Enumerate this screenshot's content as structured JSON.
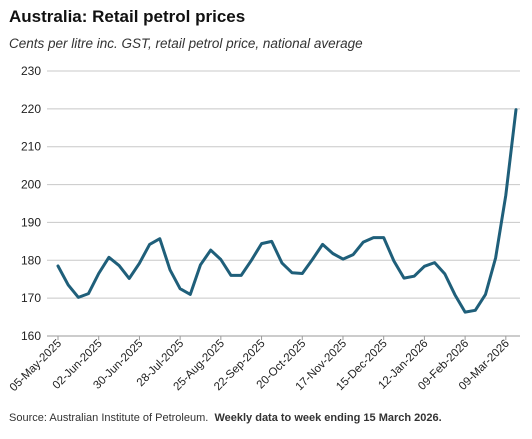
{
  "chart_data": {
    "type": "line",
    "title": "Australia: Retail petrol prices",
    "subtitle": "Cents per litre inc. GST, retail petrol price, national average",
    "xlabel": "",
    "ylabel": "",
    "ylim": [
      160,
      230
    ],
    "yticks": [
      160,
      170,
      180,
      190,
      200,
      210,
      220,
      230
    ],
    "grid": true,
    "legend": "none",
    "line_color": "#1f5f7a",
    "x_tick_labels": [
      "05-May-2025",
      "02-Jun-2025",
      "30-Jun-2025",
      "28-Jul-2025",
      "25-Aug-2025",
      "22-Sep-2025",
      "20-Oct-2025",
      "17-Nov-2025",
      "15-Dec-2025",
      "12-Jan-2026",
      "09-Feb-2026",
      "09-Mar-2026"
    ],
    "x": [
      "05-May-2025",
      "12-May-2025",
      "19-May-2025",
      "26-May-2025",
      "02-Jun-2025",
      "09-Jun-2025",
      "16-Jun-2025",
      "23-Jun-2025",
      "30-Jun-2025",
      "07-Jul-2025",
      "14-Jul-2025",
      "21-Jul-2025",
      "28-Jul-2025",
      "04-Aug-2025",
      "11-Aug-2025",
      "18-Aug-2025",
      "25-Aug-2025",
      "01-Sep-2025",
      "08-Sep-2025",
      "15-Sep-2025",
      "22-Sep-2025",
      "29-Sep-2025",
      "06-Oct-2025",
      "13-Oct-2025",
      "20-Oct-2025",
      "27-Oct-2025",
      "03-Nov-2025",
      "10-Nov-2025",
      "17-Nov-2025",
      "24-Nov-2025",
      "01-Dec-2025",
      "08-Dec-2025",
      "15-Dec-2025",
      "22-Dec-2025",
      "29-Dec-2025",
      "05-Jan-2026",
      "12-Jan-2026",
      "19-Jan-2026",
      "26-Jan-2026",
      "02-Feb-2026",
      "09-Feb-2026",
      "16-Feb-2026",
      "23-Feb-2026",
      "02-Mar-2026",
      "09-Mar-2026",
      "16-Mar-2026"
    ],
    "values": [
      178.5,
      173.5,
      170.2,
      171.2,
      176.5,
      180.8,
      178.6,
      175.2,
      179.2,
      184.2,
      185.7,
      177.5,
      172.5,
      171.0,
      178.8,
      182.7,
      180.2,
      176.0,
      176.0,
      180.0,
      184.4,
      185.0,
      179.3,
      176.7,
      176.5,
      180.2,
      184.2,
      181.8,
      180.3,
      181.5,
      184.8,
      186.0,
      186.0,
      179.8,
      175.3,
      175.8,
      178.4,
      179.4,
      176.4,
      170.9,
      166.3,
      166.8,
      171.0,
      180.6,
      197.2,
      219.8
    ]
  },
  "source": {
    "text": "Source: Australian Institute of Petroleum.",
    "note": "Weekly data to week ending 15 March 2026."
  }
}
